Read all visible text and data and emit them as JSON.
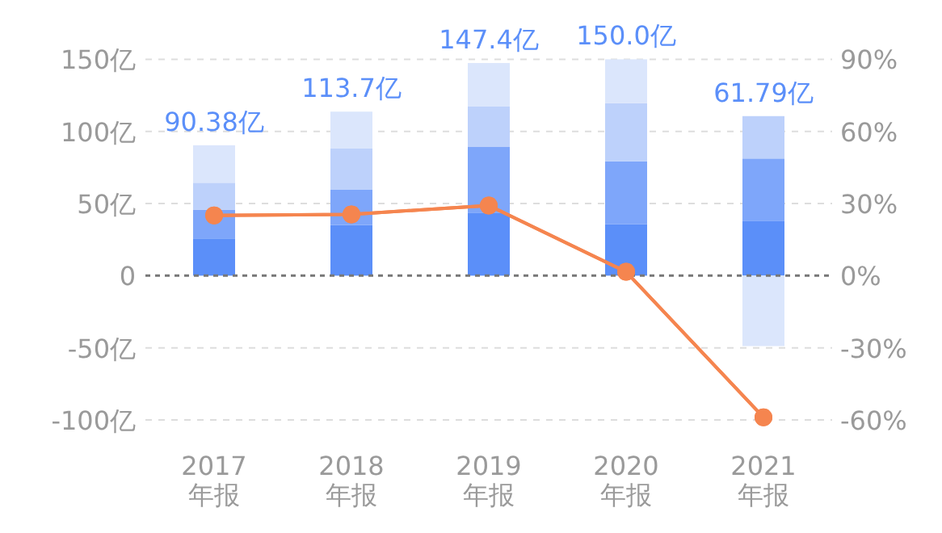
{
  "chart_data": {
    "type": "bar",
    "stacked": true,
    "categories": [
      "2017\n年报",
      "2018\n年报",
      "2019\n年报",
      "2020\n年报",
      "2021\n年报"
    ],
    "series": [
      {
        "color": "#5b8ff9",
        "values": [
          25.8,
          35.2,
          43.7,
          35.8,
          38.1
        ]
      },
      {
        "color": "#7ea6fa",
        "values": [
          19.8,
          24.6,
          45.5,
          43.4,
          43.1
        ]
      },
      {
        "color": "#bdd1fb",
        "values": [
          18.8,
          28.3,
          28.0,
          40.3,
          29.4
        ]
      },
      {
        "color": "#dbe6fc",
        "values": [
          26.0,
          25.6,
          30.2,
          30.5,
          -48.8
        ]
      },
      {
        "type": "line",
        "axis": "y2",
        "color": "#f5854f",
        "marker": "circle",
        "values": [
          25.1,
          25.5,
          29.2,
          1.6,
          -58.9
        ]
      }
    ],
    "totals": [
      "90.38亿",
      "113.7亿",
      "147.4亿",
      "150.0亿",
      "61.79亿"
    ],
    "ylim": [
      -100,
      150
    ],
    "yticks": [
      {
        "value": -100,
        "label": "-100亿"
      },
      {
        "value": -50,
        "label": "-50亿"
      },
      0,
      {
        "value": 50,
        "label": "50亿"
      },
      {
        "value": 100,
        "label": "100亿"
      },
      {
        "value": 150,
        "label": "150亿"
      }
    ],
    "y2lim": [
      -60,
      90
    ],
    "y2ticks": [
      {
        "value": -60,
        "label": "-60%"
      },
      {
        "value": -30,
        "label": "-30%"
      },
      {
        "value": 0,
        "label": "0%"
      },
      {
        "value": 30,
        "label": "30%"
      },
      {
        "value": 60,
        "label": "60%"
      },
      {
        "value": 90,
        "label": "90%"
      }
    ],
    "ref_lines": [
      {
        "axis": "y",
        "value": 0,
        "color": "#777777",
        "line_style": "dotted"
      }
    ],
    "grid": "y"
  }
}
